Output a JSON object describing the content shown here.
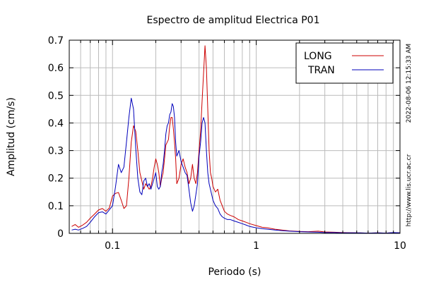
{
  "chart_data": {
    "type": "line",
    "title": "Espectro de amplitud Electrica P01",
    "xlabel": "Periodo (s)",
    "ylabel": "Amplitud (cm/s)",
    "x_scale": "log",
    "xlim": [
      0.05,
      10
    ],
    "ylim": [
      0,
      0.7
    ],
    "x_ticks": [
      0.1,
      1,
      10
    ],
    "x_tick_labels": [
      "0.1",
      "1",
      "10"
    ],
    "y_ticks": [
      0,
      0.1,
      0.2,
      0.3,
      0.4,
      0.5,
      0.6,
      0.7
    ],
    "y_tick_labels": [
      "0",
      "0.1",
      "0.2",
      "0.3",
      "0.4",
      "0.5",
      "0.6",
      "0.7"
    ],
    "grid": true,
    "legend_position": "top-right",
    "series": [
      {
        "name": "LONG",
        "color": "#cc0000",
        "x": [
          0.052,
          0.055,
          0.058,
          0.062,
          0.066,
          0.07,
          0.075,
          0.08,
          0.085,
          0.09,
          0.095,
          0.1,
          0.105,
          0.11,
          0.115,
          0.12,
          0.125,
          0.13,
          0.135,
          0.14,
          0.145,
          0.15,
          0.155,
          0.16,
          0.165,
          0.17,
          0.175,
          0.18,
          0.185,
          0.19,
          0.195,
          0.2,
          0.205,
          0.21,
          0.215,
          0.22,
          0.225,
          0.23,
          0.235,
          0.24,
          0.245,
          0.25,
          0.255,
          0.26,
          0.265,
          0.27,
          0.275,
          0.28,
          0.29,
          0.3,
          0.31,
          0.32,
          0.33,
          0.34,
          0.35,
          0.36,
          0.37,
          0.38,
          0.39,
          0.4,
          0.41,
          0.42,
          0.43,
          0.44,
          0.45,
          0.46,
          0.47,
          0.48,
          0.49,
          0.5,
          0.52,
          0.54,
          0.56,
          0.58,
          0.6,
          0.63,
          0.66,
          0.7,
          0.75,
          0.8,
          0.85,
          0.9,
          1.0,
          1.1,
          1.2,
          1.35,
          1.5,
          1.7,
          2.0,
          2.3,
          2.7,
          3.0,
          3.5,
          4.0,
          5.0,
          6.0,
          7.0,
          8.0,
          9.0,
          10.0
        ],
        "values": [
          0.025,
          0.032,
          0.022,
          0.03,
          0.04,
          0.055,
          0.07,
          0.085,
          0.09,
          0.08,
          0.092,
          0.135,
          0.145,
          0.148,
          0.12,
          0.09,
          0.1,
          0.2,
          0.33,
          0.39,
          0.37,
          0.3,
          0.22,
          0.19,
          0.16,
          0.18,
          0.17,
          0.16,
          0.17,
          0.2,
          0.24,
          0.27,
          0.25,
          0.22,
          0.17,
          0.2,
          0.22,
          0.27,
          0.32,
          0.33,
          0.34,
          0.39,
          0.42,
          0.42,
          0.38,
          0.33,
          0.27,
          0.18,
          0.2,
          0.25,
          0.27,
          0.24,
          0.22,
          0.18,
          0.2,
          0.25,
          0.2,
          0.18,
          0.22,
          0.3,
          0.37,
          0.48,
          0.58,
          0.68,
          0.6,
          0.45,
          0.3,
          0.22,
          0.2,
          0.17,
          0.15,
          0.16,
          0.12,
          0.1,
          0.08,
          0.07,
          0.065,
          0.06,
          0.05,
          0.045,
          0.04,
          0.035,
          0.028,
          0.022,
          0.02,
          0.015,
          0.012,
          0.009,
          0.007,
          0.006,
          0.008,
          0.005,
          0.004,
          0.003,
          0.002,
          0.001,
          0.002,
          0.001,
          0.003,
          0.002
        ]
      },
      {
        "name": "TRAN",
        "color": "#0000bb",
        "x": [
          0.052,
          0.055,
          0.058,
          0.062,
          0.066,
          0.07,
          0.075,
          0.08,
          0.085,
          0.09,
          0.095,
          0.1,
          0.105,
          0.11,
          0.115,
          0.12,
          0.125,
          0.13,
          0.135,
          0.14,
          0.145,
          0.15,
          0.155,
          0.16,
          0.165,
          0.17,
          0.175,
          0.18,
          0.185,
          0.19,
          0.195,
          0.2,
          0.205,
          0.21,
          0.215,
          0.22,
          0.225,
          0.23,
          0.235,
          0.24,
          0.245,
          0.25,
          0.255,
          0.26,
          0.265,
          0.27,
          0.275,
          0.28,
          0.29,
          0.3,
          0.31,
          0.32,
          0.33,
          0.34,
          0.35,
          0.36,
          0.37,
          0.38,
          0.39,
          0.4,
          0.41,
          0.42,
          0.43,
          0.44,
          0.45,
          0.46,
          0.47,
          0.48,
          0.49,
          0.5,
          0.52,
          0.54,
          0.56,
          0.58,
          0.6,
          0.63,
          0.66,
          0.7,
          0.75,
          0.8,
          0.85,
          0.9,
          1.0,
          1.1,
          1.2,
          1.35,
          1.5,
          1.7,
          2.0,
          2.3,
          2.7,
          3.0,
          3.5,
          4.0,
          5.0,
          6.0,
          7.0,
          8.0,
          9.0,
          10.0
        ],
        "values": [
          0.012,
          0.015,
          0.012,
          0.018,
          0.025,
          0.04,
          0.06,
          0.075,
          0.078,
          0.07,
          0.085,
          0.1,
          0.17,
          0.25,
          0.22,
          0.24,
          0.33,
          0.42,
          0.49,
          0.45,
          0.31,
          0.2,
          0.15,
          0.14,
          0.19,
          0.2,
          0.17,
          0.18,
          0.16,
          0.18,
          0.2,
          0.22,
          0.17,
          0.16,
          0.17,
          0.22,
          0.25,
          0.3,
          0.36,
          0.39,
          0.4,
          0.43,
          0.44,
          0.47,
          0.46,
          0.42,
          0.33,
          0.28,
          0.3,
          0.26,
          0.24,
          0.22,
          0.21,
          0.16,
          0.11,
          0.08,
          0.1,
          0.14,
          0.18,
          0.28,
          0.33,
          0.4,
          0.42,
          0.4,
          0.3,
          0.22,
          0.18,
          0.16,
          0.14,
          0.12,
          0.1,
          0.09,
          0.07,
          0.06,
          0.055,
          0.05,
          0.05,
          0.045,
          0.04,
          0.035,
          0.03,
          0.025,
          0.02,
          0.017,
          0.015,
          0.012,
          0.01,
          0.008,
          0.006,
          0.005,
          0.004,
          0.003,
          0.003,
          0.002,
          0.002,
          0.001,
          0.002,
          0.001,
          0.003,
          0.002
        ]
      }
    ]
  },
  "side_text": {
    "timestamp": "2022-08-06 12:15:33 AM",
    "url": "http://www.lis.ucr.ac.cr"
  }
}
